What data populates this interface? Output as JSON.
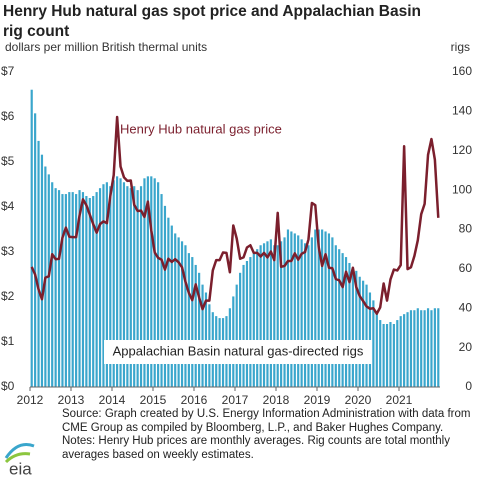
{
  "chart_data": {
    "type": "bar-line",
    "title": "Henry Hub natural gas spot price and Appalachian Basin rig count",
    "y_label": "dollars per million British thermal units",
    "y2_label": "rigs",
    "categories": [
      "2012",
      null,
      null,
      null,
      null,
      null,
      null,
      null,
      null,
      null,
      null,
      null,
      "2013",
      null,
      null,
      null,
      null,
      null,
      null,
      null,
      null,
      null,
      null,
      null,
      "2014",
      null,
      null,
      null,
      null,
      null,
      null,
      null,
      null,
      null,
      null,
      null,
      "2015",
      null,
      null,
      null,
      null,
      null,
      null,
      null,
      null,
      null,
      null,
      null,
      "2016",
      null,
      null,
      null,
      null,
      null,
      null,
      null,
      null,
      null,
      null,
      null,
      "2017",
      null,
      null,
      null,
      null,
      null,
      null,
      null,
      null,
      null,
      null,
      null,
      "2018",
      null,
      null,
      null,
      null,
      null,
      null,
      null,
      null,
      null,
      null,
      null,
      "2019",
      null,
      null,
      null,
      null,
      null,
      null,
      null,
      null,
      null,
      null,
      null,
      "2020",
      null,
      null,
      null,
      null,
      null,
      null,
      null,
      null,
      null,
      null,
      null,
      "2021",
      null,
      null,
      null,
      null,
      null,
      null,
      null,
      null,
      null,
      null,
      null
    ],
    "series": [
      {
        "name": "Appalachian Basin natural gas-directed rigs",
        "color": "#3aa6cc",
        "kind": "bar",
        "axis": "y2",
        "values": [
          151,
          139,
          125,
          118,
          112,
          108,
          104,
          101,
          100,
          98,
          98,
          99,
          99,
          98,
          100,
          99,
          97,
          96,
          97,
          99,
          101,
          103,
          104,
          102,
          105,
          107,
          106,
          104,
          102,
          101,
          102,
          100,
          102,
          106,
          107,
          107,
          106,
          104,
          98,
          92,
          86,
          82,
          78,
          76,
          74,
          72,
          68,
          66,
          62,
          58,
          52,
          48,
          42,
          38,
          36,
          35,
          35,
          36,
          40,
          46,
          52,
          58,
          62,
          64,
          66,
          68,
          70,
          72,
          73,
          74,
          75,
          72,
          72,
          74,
          76,
          80,
          79,
          78,
          77,
          75,
          73,
          72,
          76,
          80,
          80,
          80,
          79,
          78,
          76,
          72,
          70,
          68,
          66,
          63,
          60,
          59,
          56,
          54,
          52,
          48,
          44,
          38,
          34,
          32,
          32,
          33,
          32,
          34,
          36,
          37,
          38,
          39,
          39,
          40,
          39,
          39,
          40,
          39,
          40,
          40
        ]
      },
      {
        "name": "Henry Hub natural gas price",
        "color": "#7b1f2d",
        "kind": "line",
        "axis": "y",
        "values": [
          2.67,
          2.5,
          2.17,
          1.95,
          2.43,
          2.46,
          2.95,
          2.84,
          2.85,
          3.32,
          3.54,
          3.34,
          3.33,
          3.33,
          3.81,
          4.17,
          4.04,
          3.83,
          3.62,
          3.43,
          3.62,
          3.68,
          3.64,
          4.24,
          4.71,
          6.0,
          4.9,
          4.66,
          4.58,
          4.59,
          4.05,
          3.91,
          3.92,
          3.78,
          4.12,
          3.48,
          2.99,
          2.87,
          2.83,
          2.61,
          2.85,
          2.78,
          2.84,
          2.77,
          2.66,
          2.34,
          2.09,
          1.93,
          2.28,
          1.99,
          1.73,
          1.92,
          1.92,
          2.59,
          2.82,
          2.82,
          2.99,
          2.98,
          2.55,
          3.59,
          3.3,
          2.85,
          2.88,
          3.1,
          3.15,
          2.98,
          2.98,
          2.9,
          2.98,
          2.88,
          3.01,
          2.82,
          3.87,
          2.67,
          2.69,
          2.8,
          2.8,
          2.97,
          2.83,
          2.96,
          3.0,
          3.28,
          4.09,
          4.04,
          3.11,
          2.69,
          2.95,
          2.65,
          2.64,
          2.4,
          2.37,
          2.22,
          2.56,
          2.33,
          2.65,
          2.22,
          2.02,
          1.91,
          1.79,
          1.74,
          1.75,
          1.63,
          1.77,
          2.3,
          1.92,
          2.39,
          2.61,
          2.59,
          2.71,
          5.35,
          2.62,
          2.66,
          2.91,
          3.26,
          3.84,
          4.07,
          5.16,
          5.51,
          5.05,
          3.76
        ]
      }
    ],
    "ylim": [
      0,
      7
    ],
    "yticks": [
      {
        "value": 0,
        "label": "$0"
      },
      {
        "value": 1,
        "label": "$1"
      },
      {
        "value": 2,
        "label": "$2"
      },
      {
        "value": 3,
        "label": "$3"
      },
      {
        "value": 4,
        "label": "$4"
      },
      {
        "value": 5,
        "label": "$5"
      },
      {
        "value": 6,
        "label": "$6"
      },
      {
        "value": 7,
        "label": "$7"
      }
    ],
    "y2lim": [
      0,
      160
    ],
    "y2ticks": [
      0,
      20,
      40,
      60,
      80,
      100,
      120,
      140,
      160
    ],
    "grid": false,
    "source": "Source: Graph created by U.S. Energy Information Administration with data from CME Group as compiled by Bloomberg, L.P., and Baker Hughes Company.",
    "notes": "Notes: Henry Hub prices are monthly averages. Rig counts are total monthly averages based on weekly estimates.",
    "logo": "eia"
  }
}
